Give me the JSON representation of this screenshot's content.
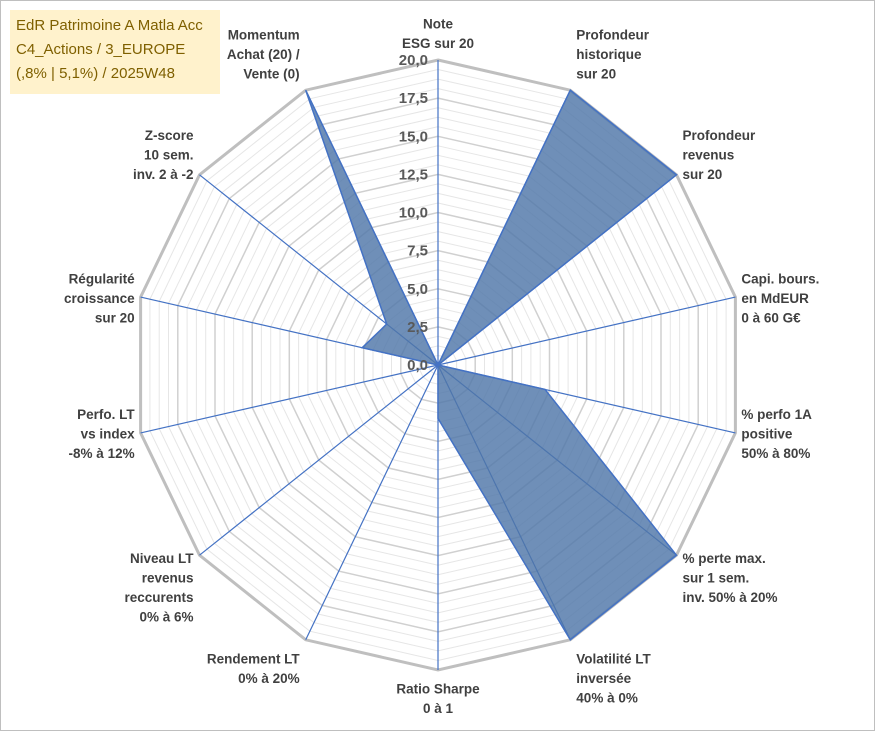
{
  "header": {
    "line1": "EdR Patrimoine A Matla Acc",
    "line2": "C4_Actions / 3_EUROPE",
    "line3": "(,8% | 5,1%) / 2025W48"
  },
  "chart_data": {
    "type": "radar",
    "title": "EdR Patrimoine A Matla Acc",
    "rlim": [
      0,
      20
    ],
    "ticks": [
      "0,0",
      "2,5",
      "5,0",
      "7,5",
      "10,0",
      "12,5",
      "15,0",
      "17,5",
      "20,0"
    ],
    "tick_values": [
      0,
      2.5,
      5,
      7.5,
      10,
      12.5,
      15,
      17.5,
      20
    ],
    "categories": [
      [
        "Note",
        "ESG sur 20"
      ],
      [
        "Profondeur",
        "historique",
        "sur 20"
      ],
      [
        "Profondeur",
        "revenus",
        "sur 20"
      ],
      [
        "Capi. bours.",
        "en MdEUR",
        "0 à 60 G€"
      ],
      [
        "% perfo 1A",
        "positive",
        "50% à 80%"
      ],
      [
        "% perte max.",
        "sur 1 sem.",
        "inv. 50% à 20%"
      ],
      [
        "Volatilité LT",
        "inversée",
        "40% à 0%"
      ],
      [
        "Ratio Sharpe",
        "0 à 1"
      ],
      [
        "Rendement LT",
        "0% à 20%"
      ],
      [
        "Niveau LT",
        "revenus",
        "reccurents",
        "0% à 6%"
      ],
      [
        "Perfo. LT",
        "vs index",
        "-8% à 12%"
      ],
      [
        "Régularité",
        "croissance",
        "sur 20"
      ],
      [
        "Z-score",
        "10 sem.",
        "inv. 2 à -2"
      ],
      [
        "Momentum",
        "Achat (20) /",
        "Vente (0)"
      ]
    ],
    "series": [
      {
        "name": "EdR Patrimoine A Matla Acc",
        "values": [
          0,
          20,
          20,
          0,
          7.2,
          20,
          20,
          3.5,
          0,
          0,
          0,
          5.1,
          4.3,
          20
        ],
        "fill": "#4f76a8",
        "stroke": "#4472c4"
      }
    ],
    "grid": true,
    "legend": "none"
  }
}
